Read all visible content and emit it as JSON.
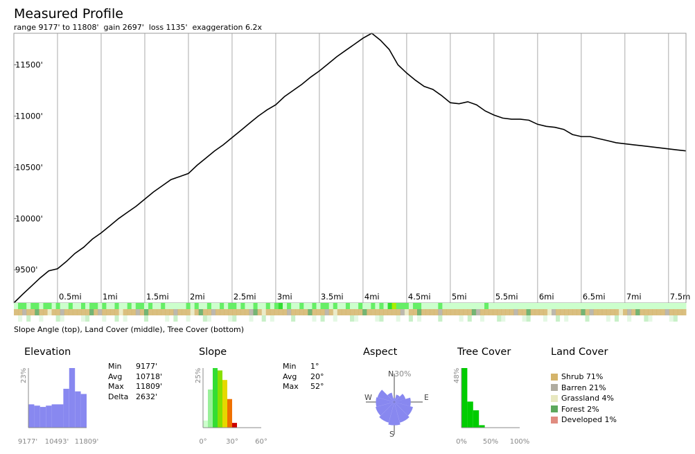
{
  "header": {
    "title": "Measured Profile",
    "subtitle": "range 9177' to 11808'  gain 2697'  loss 1135'  exaggeration 6.2x"
  },
  "chart_data": [
    {
      "type": "line",
      "title": "Measured Profile",
      "xlabel": "",
      "ylabel": "",
      "xlim": [
        0,
        7.7
      ],
      "ylim": [
        9177,
        11808
      ],
      "grid": true,
      "x_tick_labels": [
        "0.5mi",
        "1mi",
        "1.5mi",
        "2mi",
        "2.5mi",
        "3mi",
        "3.5mi",
        "4mi",
        "4.5mi",
        "5mi",
        "5.5mi",
        "6mi",
        "6.5mi",
        "7mi",
        "7.5m"
      ],
      "x_ticks": [
        0.5,
        1,
        1.5,
        2,
        2.5,
        3,
        3.5,
        4,
        4.5,
        5,
        5.5,
        6,
        6.5,
        7,
        7.5
      ],
      "y_tick_labels": [
        "9500'",
        "10000'",
        "10500'",
        "11000'",
        "11500'"
      ],
      "y_ticks": [
        9500,
        10000,
        10500,
        11000,
        11500
      ],
      "series": [
        {
          "x": [
            0,
            0.1,
            0.2,
            0.3,
            0.4,
            0.5,
            0.6,
            0.7,
            0.8,
            0.9,
            1.0,
            1.1,
            1.2,
            1.3,
            1.4,
            1.5,
            1.6,
            1.7,
            1.8,
            1.9,
            2.0,
            2.1,
            2.2,
            2.3,
            2.4,
            2.5,
            2.6,
            2.7,
            2.8,
            2.9,
            3.0,
            3.1,
            3.2,
            3.3,
            3.4,
            3.5,
            3.6,
            3.7,
            3.8,
            3.9,
            4.0,
            4.1,
            4.2,
            4.3,
            4.4,
            4.5,
            4.6,
            4.7,
            4.8,
            4.9,
            5.0,
            5.1,
            5.2,
            5.3,
            5.4,
            5.5,
            5.6,
            5.7,
            5.8,
            5.9,
            6.0,
            6.1,
            6.2,
            6.3,
            6.4,
            6.5,
            6.6,
            6.7,
            6.8,
            6.9,
            7.0,
            7.1,
            7.2,
            7.3,
            7.4,
            7.5,
            7.6,
            7.7
          ],
          "values": [
            9177,
            9260,
            9340,
            9420,
            9490,
            9510,
            9580,
            9660,
            9720,
            9800,
            9860,
            9930,
            10000,
            10060,
            10120,
            10190,
            10260,
            10320,
            10380,
            10410,
            10440,
            10520,
            10590,
            10660,
            10720,
            10790,
            10860,
            10930,
            11000,
            11060,
            11110,
            11190,
            11250,
            11310,
            11380,
            11440,
            11510,
            11580,
            11640,
            11700,
            11760,
            11808,
            11740,
            11650,
            11500,
            11420,
            11350,
            11290,
            11260,
            11200,
            11130,
            11120,
            11140,
            11110,
            11050,
            11010,
            10980,
            10970,
            10970,
            10960,
            10920,
            10900,
            10890,
            10870,
            10820,
            10800,
            10800,
            10780,
            10760,
            10740,
            10730,
            10720,
            10710,
            10700,
            10690,
            10680,
            10670,
            10660
          ]
        }
      ]
    },
    {
      "type": "bar",
      "title": "Elevation",
      "xlabel": "",
      "ylabel": "23%",
      "x_tick_labels": [
        "9177'",
        "10493'",
        "11809'"
      ],
      "ylim": [
        0,
        23
      ],
      "values": [
        9,
        8.5,
        8,
        8.5,
        9,
        9,
        15,
        23,
        14,
        13
      ],
      "color": "#8888f0"
    },
    {
      "type": "bar",
      "title": "Slope",
      "xlabel": "",
      "ylabel": "25%",
      "x_tick_labels": [
        "0°",
        "30°",
        "60°"
      ],
      "ylim": [
        0,
        25
      ],
      "values": [
        3,
        16,
        25,
        24,
        20,
        12,
        2,
        0,
        0,
        0,
        0,
        0
      ],
      "colors": [
        "#ccffcc",
        "#99f099",
        "#33dd33",
        "#88e000",
        "#e6d800",
        "#ef7000",
        "#cc0000",
        "#ffffff",
        "#ffffff",
        "#ffffff",
        "#ffffff",
        "#ffffff"
      ]
    },
    {
      "type": "bar",
      "title": "Tree Cover",
      "xlabel": "",
      "ylabel": "48%",
      "x_tick_labels": [
        "0%",
        "50%",
        "100%"
      ],
      "ylim": [
        0,
        48
      ],
      "values": [
        48,
        21,
        14,
        2,
        0,
        0,
        0,
        0,
        0,
        0
      ],
      "color": "#00cc00"
    }
  ],
  "strip_caption": "Slope Angle (top), Land Cover (middle), Tree Cover (bottom)",
  "elevation": {
    "title": "Elevation",
    "stats": [
      {
        "label": "Min",
        "value": "9177'"
      },
      {
        "label": "Avg",
        "value": "10718'"
      },
      {
        "label": "Max",
        "value": "11809'"
      },
      {
        "label": "Delta",
        "value": "2632'"
      }
    ]
  },
  "slope": {
    "title": "Slope",
    "stats": [
      {
        "label": "Min",
        "value": "1°"
      },
      {
        "label": "Avg",
        "value": "20°"
      },
      {
        "label": "Max",
        "value": "52°"
      }
    ]
  },
  "aspect": {
    "title": "Aspect",
    "n_label": "N",
    "s_label": "S",
    "e_label": "E",
    "w_label": "W",
    "scale_label": "30%",
    "color": "#8888f0",
    "petals_percent": [
      4,
      8,
      12,
      17,
      20,
      22,
      24,
      22,
      20,
      19,
      18,
      10
    ]
  },
  "tree_cover": {
    "title": "Tree Cover"
  },
  "land_cover": {
    "title": "Land Cover",
    "items": [
      {
        "label": "Shrub 71%",
        "color": "#d4b46a"
      },
      {
        "label": "Barren 21%",
        "color": "#b0aca0"
      },
      {
        "label": "Grassland 4%",
        "color": "#e8e8c0"
      },
      {
        "label": "Forest 2%",
        "color": "#5ca85c"
      },
      {
        "label": "Developed 1%",
        "color": "#e08c80"
      }
    ]
  }
}
